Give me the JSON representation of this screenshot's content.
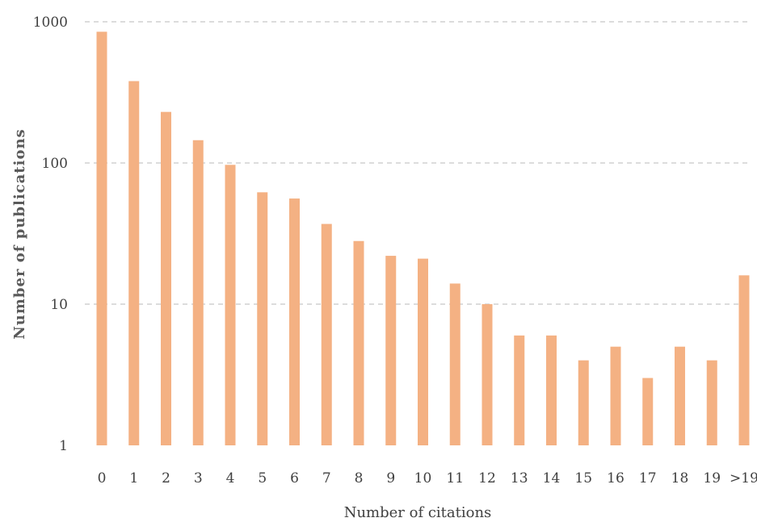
{
  "chart_data": {
    "type": "bar",
    "title": "",
    "xlabel": "Number of citations",
    "ylabel": "Number of publications",
    "y_scale": "log",
    "ylim": [
      1,
      1000
    ],
    "y_ticks": [
      {
        "value": 1,
        "label": "1"
      },
      {
        "value": 10,
        "label": "10"
      },
      {
        "value": 100,
        "label": "100"
      },
      {
        "value": 1000,
        "label": "1000"
      }
    ],
    "grid": true,
    "bar_color": "#f4b183",
    "categories": [
      "0",
      "1",
      "2",
      "3",
      "4",
      "5",
      "6",
      "7",
      "8",
      "9",
      "10",
      "11",
      "12",
      "13",
      "14",
      "15",
      "16",
      "17",
      "18",
      "19",
      ">19"
    ],
    "values": [
      850,
      380,
      230,
      145,
      97,
      62,
      56,
      37,
      28,
      22,
      21,
      14,
      10,
      6,
      6,
      4,
      5,
      3,
      5,
      4,
      16
    ]
  }
}
